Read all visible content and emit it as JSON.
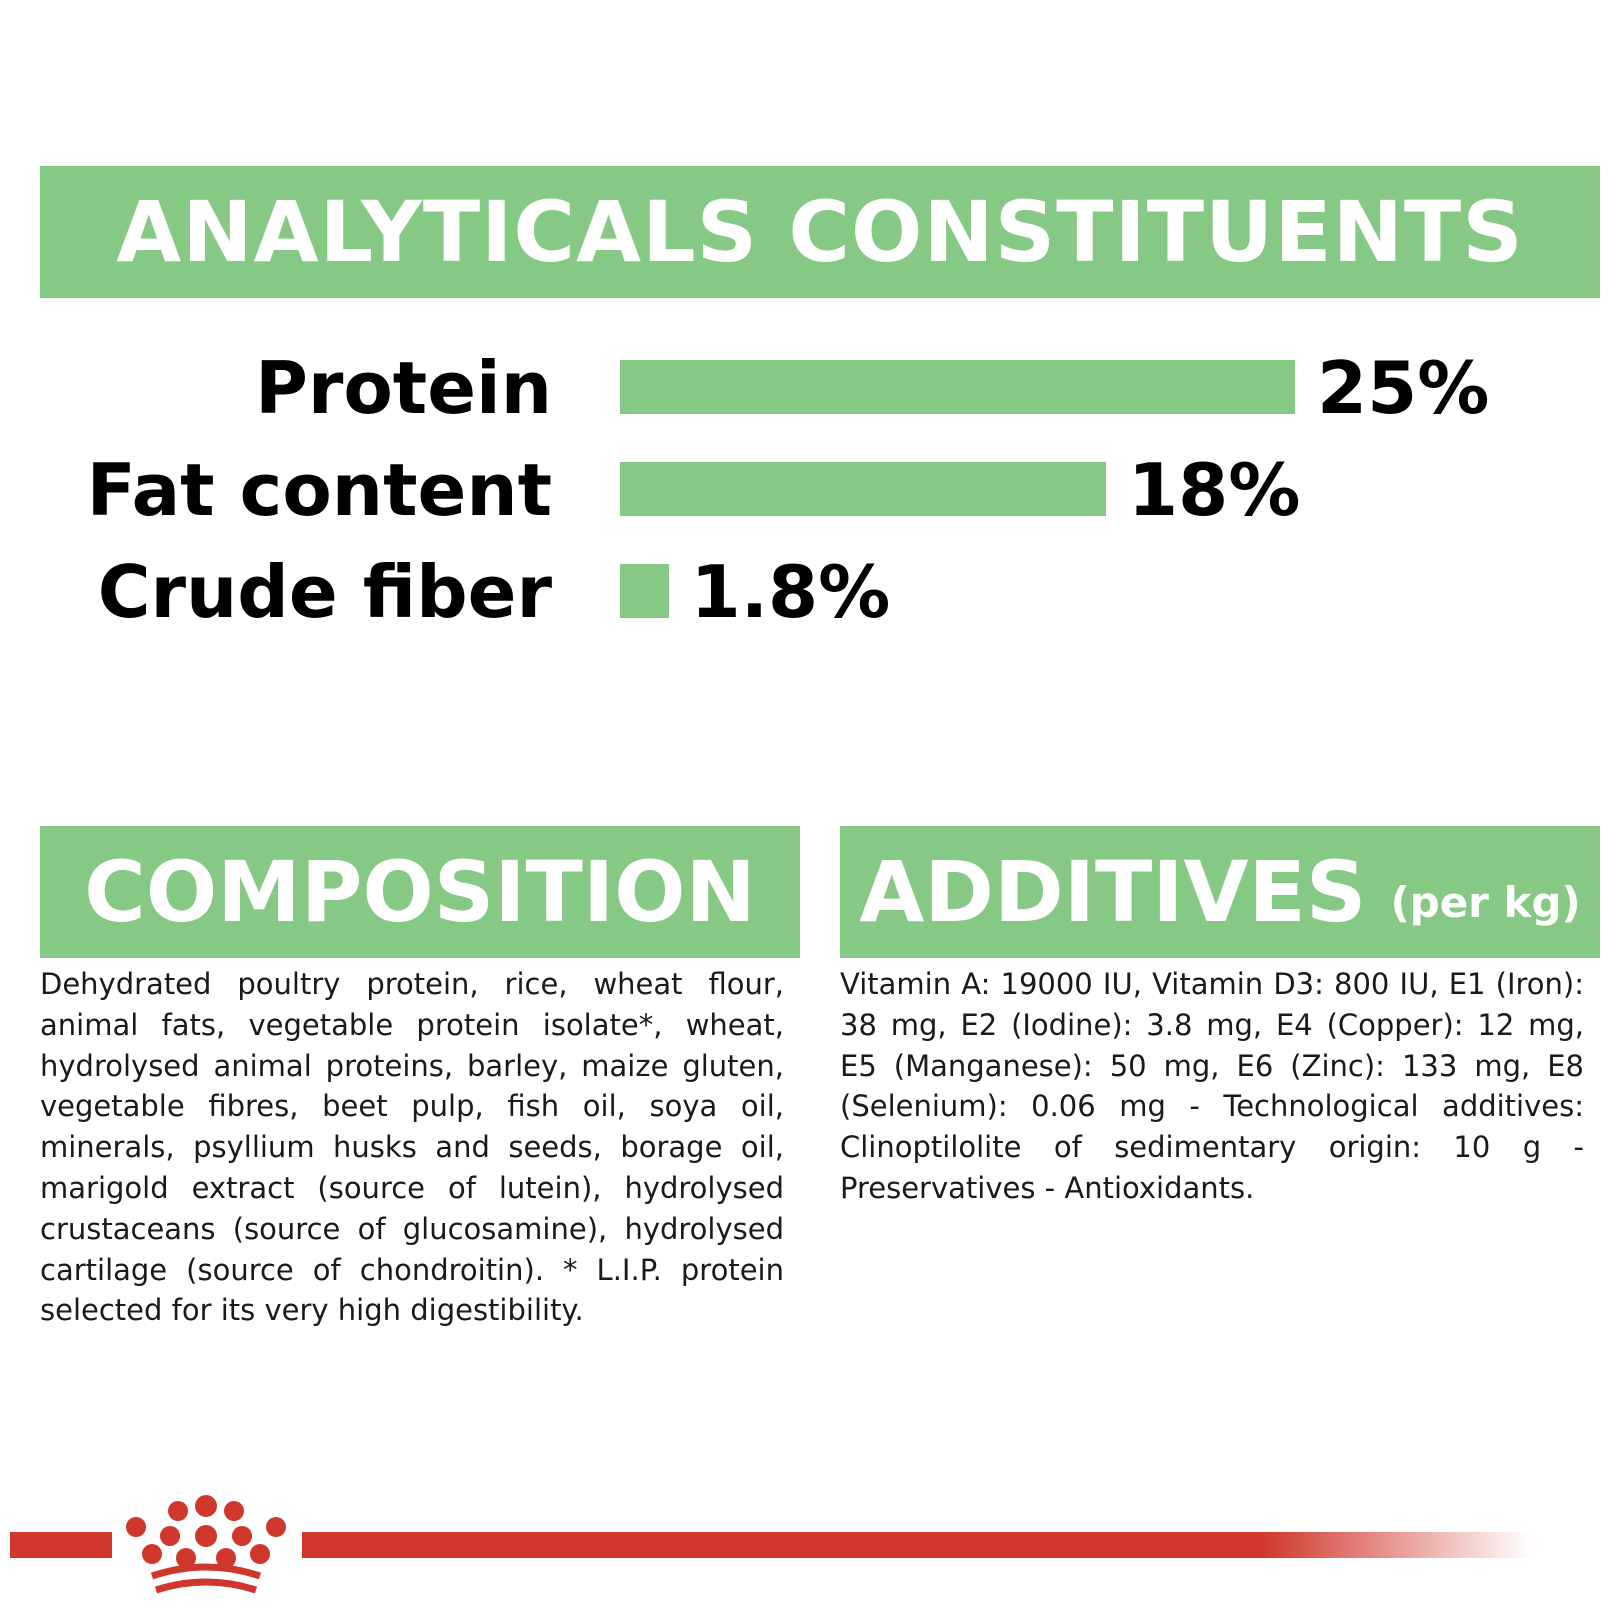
{
  "headings": {
    "analytical": "ANALYTICALS CONSTITUENTS",
    "composition": "COMPOSITION",
    "additives": "ADDITIVES",
    "additives_sub": "(per kg)"
  },
  "colors": {
    "accent_green": "#86c985",
    "brand_red": "#d0372c"
  },
  "chart_data": {
    "type": "bar",
    "orientation": "horizontal",
    "categories": [
      "Protein",
      "Fat content",
      "Crude fiber"
    ],
    "values": [
      25,
      18,
      1.8
    ],
    "value_labels": [
      "25%",
      "18%",
      "1.8%"
    ],
    "unit": "%",
    "title": "ANALYTICALS CONSTITUENTS",
    "xlabel": "",
    "ylabel": "",
    "grid": false,
    "legend": "none"
  },
  "composition_text": "Dehydrated poultry protein, rice, wheat flour, animal fats, vegetable protein isolate*, wheat, hydrolysed animal proteins, barley, maize gluten, vegetable fibres, beet pulp, fish oil, soya oil, minerals, psyllium husks and seeds, borage oil, marigold extract (source of lutein), hydrolysed crustaceans (source of glucosamine), hydrolysed cartilage (source of chondroitin). * L.I.P. protein selected for its very high digestibility.",
  "additives_text": "Vitamin A: 19000 IU, Vitamin D3: 800 IU, E1 (Iron): 38 mg, E2 (Iodine): 3.8 mg, E4 (Copper): 12 mg, E5 (Manganese): 50 mg, E6 (Zinc): 133 mg, E8 (Selenium): 0.06 mg - Technological additives: Clinoptilolite of sedimentary origin: 10 g - Preservatives - Antioxidants.",
  "logo": {
    "icon": "crown-icon",
    "brand": "Royal Canin"
  }
}
